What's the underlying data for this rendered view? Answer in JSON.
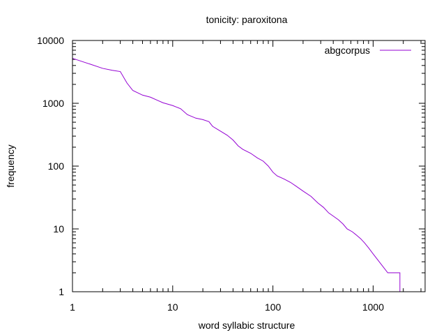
{
  "chart_data": {
    "type": "line",
    "title": "tonicity: paroxitona",
    "xlabel": "word syllabic structure",
    "ylabel": "frequency",
    "x_scale": "log",
    "y_scale": "log",
    "xlim": [
      1,
      3300
    ],
    "ylim": [
      1,
      10000
    ],
    "grid": false,
    "legend_position": "top-right",
    "x_ticks": [
      "1",
      "10",
      "100",
      "1000"
    ],
    "y_ticks": [
      "1",
      "10",
      "100",
      "1000",
      "10000"
    ],
    "series": [
      {
        "name": "abgcorpus",
        "color": "#9400d3",
        "points": [
          [
            1,
            5200
          ],
          [
            1.5,
            4200
          ],
          [
            2,
            3600
          ],
          [
            2.5,
            3350
          ],
          [
            3,
            3200
          ],
          [
            3.5,
            2100
          ],
          [
            4,
            1600
          ],
          [
            5,
            1350
          ],
          [
            6,
            1250
          ],
          [
            7,
            1120
          ],
          [
            8,
            1020
          ],
          [
            10,
            920
          ],
          [
            12,
            820
          ],
          [
            14,
            660
          ],
          [
            17,
            580
          ],
          [
            20,
            550
          ],
          [
            23,
            510
          ],
          [
            25,
            430
          ],
          [
            30,
            360
          ],
          [
            35,
            310
          ],
          [
            40,
            260
          ],
          [
            45,
            210
          ],
          [
            50,
            185
          ],
          [
            60,
            160
          ],
          [
            70,
            135
          ],
          [
            80,
            120
          ],
          [
            90,
            100
          ],
          [
            100,
            80
          ],
          [
            110,
            70
          ],
          [
            130,
            62
          ],
          [
            150,
            55
          ],
          [
            170,
            48
          ],
          [
            200,
            40
          ],
          [
            240,
            33
          ],
          [
            280,
            26
          ],
          [
            320,
            22
          ],
          [
            360,
            18
          ],
          [
            400,
            16
          ],
          [
            450,
            14
          ],
          [
            500,
            12
          ],
          [
            550,
            10
          ],
          [
            620,
            9
          ],
          [
            680,
            8
          ],
          [
            750,
            7
          ],
          [
            820,
            6
          ],
          [
            900,
            5
          ],
          [
            1000,
            4
          ],
          [
            1150,
            3
          ],
          [
            1400,
            2
          ],
          [
            1850,
            2
          ],
          [
            1850,
            1
          ]
        ]
      }
    ]
  }
}
